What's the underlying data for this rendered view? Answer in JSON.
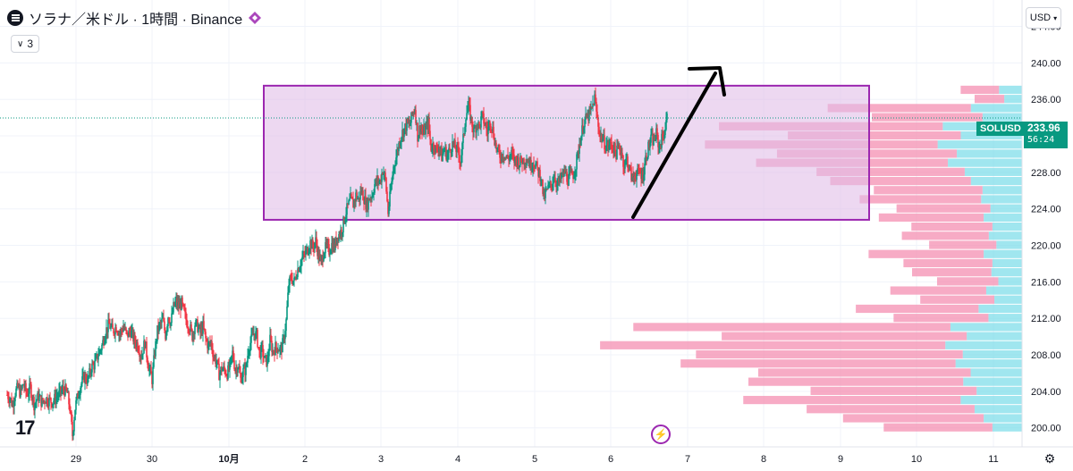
{
  "header": {
    "title": "ソラナ／米ドル · 1時間 · Binance",
    "indicator_count": "3"
  },
  "currency": "USD",
  "price_label": {
    "symbol": "SOLUSD",
    "price": "233.96",
    "countdown": "56:24"
  },
  "icons": {
    "symbol": "solana-logo-icon",
    "exchange": "binance-diamond-icon",
    "chevron": "chevron-down-icon",
    "lightning": "lightning-icon",
    "settings": "gear-icon",
    "logo": "tradingview-logo"
  },
  "chart_data": {
    "type": "candlestick",
    "y_axis": {
      "ticks": [
        "200.00",
        "204.00",
        "208.00",
        "212.00",
        "216.00",
        "220.00",
        "224.00",
        "228.00",
        "232.00",
        "236.00",
        "240.00",
        "244.00"
      ],
      "range": [
        198.5,
        246.5
      ]
    },
    "x_axis": {
      "ticks": [
        "29",
        "30",
        "10月",
        "2",
        "3",
        "4",
        "5",
        "6",
        "7",
        "8",
        "9",
        "10",
        "11"
      ]
    },
    "colors": {
      "up": "#089981",
      "down": "#f23645",
      "range_box_fill": "#e1bee7",
      "range_box_stroke": "#9c27b0",
      "vp_up": "#80deea",
      "vp_down": "#f48fb1"
    },
    "current_price": 233.96,
    "range_box": {
      "top": 237.5,
      "bottom": 222.8
    },
    "close_path": [
      [
        0,
        203.6
      ],
      [
        3,
        203.3
      ],
      [
        6,
        202.5
      ],
      [
        9,
        203.9
      ],
      [
        12,
        204.4
      ],
      [
        15,
        203.8
      ],
      [
        18,
        204.8
      ],
      [
        22,
        203.7
      ],
      [
        26,
        204.4
      ],
      [
        30,
        202.6
      ],
      [
        35,
        203.4
      ],
      [
        39,
        202.8
      ],
      [
        43,
        203.2
      ],
      [
        47,
        203.0
      ],
      [
        51,
        202.9
      ],
      [
        55,
        203.4
      ],
      [
        59,
        203.8
      ],
      [
        63,
        204.3
      ],
      [
        67,
        203.8
      ],
      [
        70,
        202.2
      ],
      [
        73,
        199.2
      ],
      [
        76,
        202.2
      ],
      [
        79,
        203.6
      ],
      [
        82,
        204.6
      ],
      [
        86,
        205.6
      ],
      [
        90,
        205.2
      ],
      [
        94,
        206.6
      ],
      [
        98,
        207.0
      ],
      [
        102,
        208.1
      ],
      [
        106,
        209.0
      ],
      [
        110,
        210.6
      ],
      [
        114,
        211.3
      ],
      [
        118,
        210.6
      ],
      [
        122,
        211.1
      ],
      [
        126,
        210.3
      ],
      [
        130,
        211.1
      ],
      [
        134,
        210.1
      ],
      [
        138,
        210.6
      ],
      [
        142,
        209.6
      ],
      [
        146,
        209.1
      ],
      [
        150,
        207.9
      ],
      [
        154,
        209.4
      ],
      [
        158,
        206.8
      ],
      [
        162,
        205.3
      ],
      [
        165,
        208.3
      ],
      [
        168,
        210.6
      ],
      [
        171,
        211.3
      ],
      [
        174,
        211.8
      ],
      [
        177,
        210.2
      ],
      [
        180,
        212.3
      ],
      [
        183,
        211.5
      ],
      [
        186,
        213.2
      ],
      [
        189,
        213.8
      ],
      [
        192,
        213.2
      ],
      [
        195,
        213.6
      ],
      [
        198,
        212.5
      ],
      [
        201,
        211.6
      ],
      [
        204,
        211.1
      ],
      [
        207,
        210.1
      ],
      [
        210,
        211.4
      ],
      [
        213,
        211.1
      ],
      [
        216,
        210.4
      ],
      [
        219,
        211.1
      ],
      [
        222,
        209.7
      ],
      [
        225,
        209.0
      ],
      [
        228,
        209.4
      ],
      [
        231,
        207.8
      ],
      [
        234,
        207.3
      ],
      [
        237,
        205.9
      ],
      [
        240,
        206.5
      ],
      [
        243,
        206.3
      ],
      [
        246,
        206.0
      ],
      [
        249,
        206.6
      ],
      [
        252,
        208.2
      ],
      [
        255,
        206.4
      ],
      [
        258,
        206.9
      ],
      [
        261,
        205.3
      ],
      [
        264,
        206.2
      ],
      [
        267,
        206.4
      ],
      [
        270,
        208.8
      ],
      [
        273,
        209.6
      ],
      [
        276,
        210.4
      ],
      [
        279,
        210.1
      ],
      [
        282,
        208.2
      ],
      [
        285,
        208.5
      ],
      [
        288,
        207.4
      ],
      [
        291,
        207.3
      ],
      [
        294,
        209.6
      ],
      [
        297,
        208.4
      ],
      [
        300,
        208.8
      ],
      [
        303,
        208.8
      ],
      [
        306,
        208.5
      ],
      [
        309,
        209.5
      ],
      [
        312,
        211.7
      ],
      [
        315,
        215.8
      ],
      [
        318,
        216.4
      ],
      [
        321,
        216.0
      ],
      [
        324,
        217.2
      ],
      [
        327,
        217.9
      ],
      [
        330,
        218.6
      ],
      [
        333,
        219.0
      ],
      [
        336,
        219.6
      ],
      [
        339,
        220.3
      ],
      [
        342,
        219.8
      ],
      [
        345,
        220.5
      ],
      [
        348,
        219.0
      ],
      [
        351,
        218.0
      ],
      [
        354,
        219.4
      ],
      [
        357,
        219.8
      ],
      [
        360,
        219.4
      ],
      [
        363,
        220.1
      ],
      [
        366,
        219.8
      ],
      [
        369,
        221.0
      ],
      [
        372,
        221.3
      ],
      [
        375,
        222.0
      ],
      [
        378,
        223.4
      ],
      [
        381,
        224.2
      ],
      [
        384,
        225.0
      ],
      [
        387,
        224.5
      ],
      [
        390,
        225.5
      ],
      [
        393,
        225.0
      ],
      [
        396,
        226.0
      ],
      [
        399,
        225.2
      ],
      [
        402,
        224.3
      ],
      [
        405,
        225.2
      ],
      [
        408,
        225.5
      ],
      [
        411,
        226.7
      ],
      [
        414,
        227.1
      ],
      [
        417,
        227.0
      ],
      [
        420,
        228.3
      ],
      [
        423,
        227.2
      ],
      [
        426,
        223.6
      ],
      [
        429,
        226.0
      ],
      [
        432,
        228.6
      ],
      [
        435,
        229.7
      ],
      [
        438,
        231.1
      ],
      [
        441,
        232.2
      ],
      [
        444,
        232.7
      ],
      [
        447,
        233.3
      ],
      [
        450,
        233.1
      ],
      [
        453,
        234.3
      ],
      [
        456,
        235.1
      ],
      [
        459,
        232.0
      ],
      [
        462,
        233.1
      ],
      [
        465,
        232.2
      ],
      [
        468,
        232.8
      ],
      [
        471,
        233.4
      ],
      [
        474,
        230.7
      ],
      [
        477,
        231.1
      ],
      [
        480,
        230.3
      ],
      [
        483,
        231.0
      ],
      [
        486,
        229.7
      ],
      [
        489,
        230.6
      ],
      [
        492,
        229.8
      ],
      [
        495,
        230.5
      ],
      [
        498,
        231.1
      ],
      [
        501,
        230.7
      ],
      [
        504,
        230.3
      ],
      [
        507,
        229.3
      ],
      [
        510,
        231.6
      ],
      [
        513,
        234.4
      ],
      [
        516,
        235.2
      ],
      [
        519,
        233.7
      ],
      [
        522,
        232.4
      ],
      [
        525,
        233.4
      ],
      [
        528,
        233.0
      ],
      [
        531,
        234.1
      ],
      [
        534,
        233.4
      ],
      [
        537,
        232.4
      ],
      [
        540,
        233.7
      ],
      [
        543,
        232.7
      ],
      [
        546,
        231.1
      ],
      [
        549,
        230.1
      ],
      [
        552,
        229.8
      ],
      [
        555,
        230.1
      ],
      [
        558,
        229.6
      ],
      [
        561,
        229.6
      ],
      [
        564,
        230.0
      ],
      [
        567,
        229.3
      ],
      [
        570,
        229.4
      ],
      [
        573,
        229.1
      ],
      [
        576,
        229.3
      ],
      [
        579,
        229.4
      ],
      [
        582,
        229.4
      ],
      [
        585,
        228.8
      ],
      [
        588,
        229.2
      ],
      [
        591,
        228.8
      ],
      [
        594,
        228.0
      ],
      [
        597,
        227.6
      ],
      [
        600,
        225.1
      ],
      [
        603,
        225.9
      ],
      [
        606,
        226.4
      ],
      [
        609,
        226.8
      ],
      [
        612,
        227.6
      ],
      [
        615,
        226.6
      ],
      [
        618,
        227.1
      ],
      [
        621,
        227.6
      ],
      [
        624,
        228.0
      ],
      [
        627,
        227.2
      ],
      [
        630,
        227.6
      ],
      [
        633,
        227.8
      ],
      [
        636,
        228.8
      ],
      [
        639,
        230.5
      ],
      [
        642,
        232.1
      ],
      [
        645,
        233.5
      ],
      [
        648,
        233.9
      ],
      [
        651,
        234.3
      ],
      [
        654,
        235.0
      ],
      [
        657,
        236.2
      ],
      [
        660,
        233.8
      ],
      [
        663,
        232.1
      ],
      [
        666,
        231.6
      ],
      [
        669,
        231.0
      ],
      [
        672,
        230.8
      ],
      [
        675,
        231.2
      ],
      [
        678,
        230.7
      ],
      [
        681,
        230.1
      ],
      [
        684,
        230.7
      ],
      [
        687,
        230.3
      ],
      [
        690,
        228.7
      ],
      [
        693,
        229.5
      ],
      [
        696,
        228.3
      ],
      [
        699,
        227.3
      ],
      [
        702,
        227.8
      ],
      [
        705,
        227.8
      ],
      [
        708,
        227.9
      ],
      [
        711,
        227.7
      ],
      [
        714,
        229.5
      ],
      [
        717,
        230.7
      ],
      [
        720,
        231.6
      ],
      [
        723,
        231.4
      ],
      [
        726,
        232.2
      ],
      [
        729,
        230.7
      ],
      [
        732,
        231.6
      ],
      [
        735,
        232.4
      ],
      [
        738,
        233.96
      ]
    ],
    "volume_profile": [
      [
        201,
        30,
        110
      ],
      [
        203,
        48,
        170
      ],
      [
        205,
        46,
        168
      ],
      [
        207,
        52,
        215
      ],
      [
        209,
        60,
        270
      ],
      [
        211,
        56,
        248
      ],
      [
        213,
        34,
        96
      ],
      [
        215,
        28,
        75
      ],
      [
        217,
        24,
        62
      ],
      [
        219,
        30,
        90
      ],
      [
        221,
        26,
        68
      ],
      [
        223,
        30,
        82
      ],
      [
        225,
        32,
        95
      ],
      [
        227,
        40,
        110
      ],
      [
        229,
        58,
        150
      ],
      [
        231,
        66,
        182
      ],
      [
        233,
        62,
        175
      ],
      [
        235,
        40,
        112
      ],
      [
        237,
        18,
        30
      ]
    ]
  }
}
